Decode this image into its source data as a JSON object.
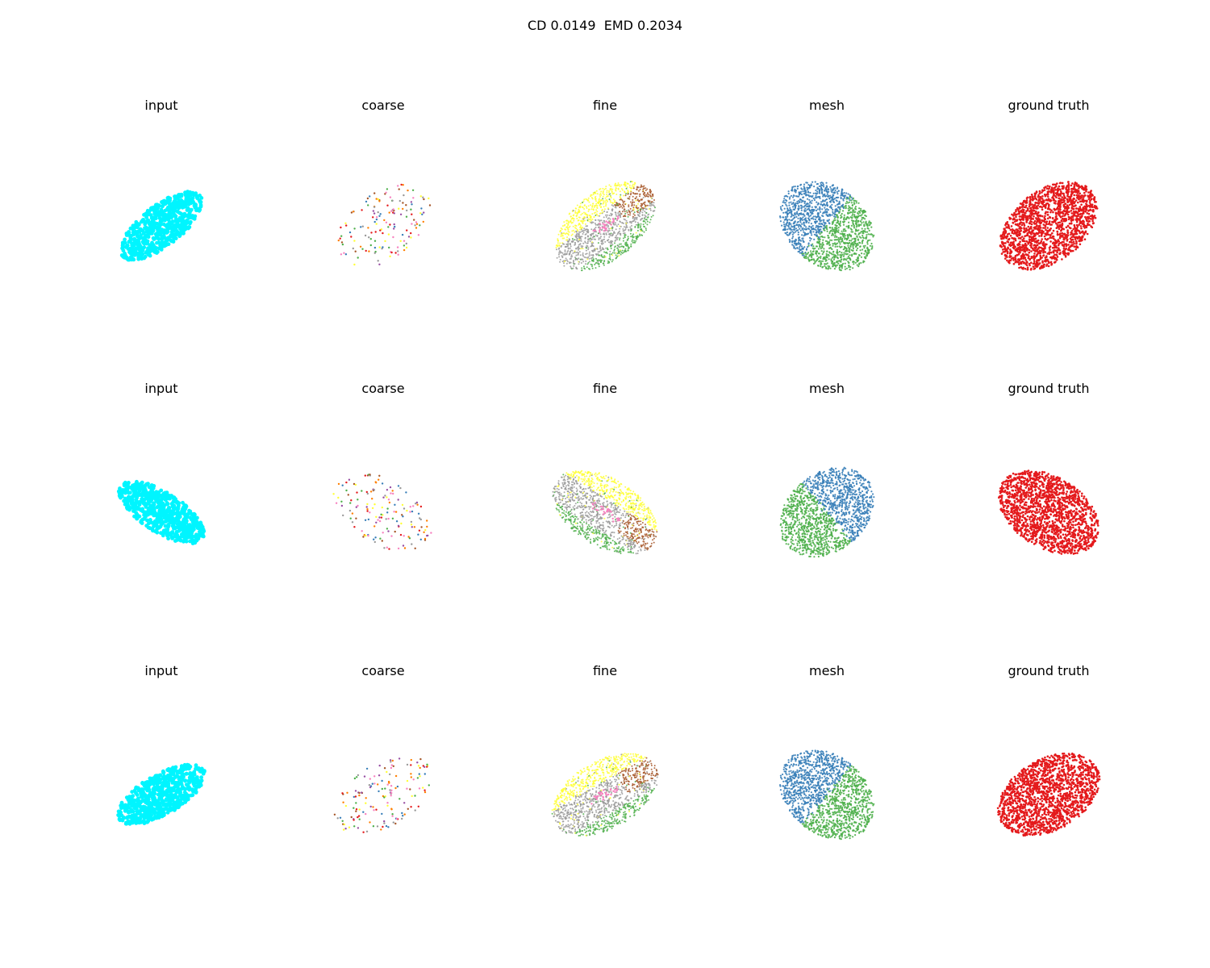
{
  "figure": {
    "title": "CD 0.0149  EMD 0.2034",
    "column_titles": [
      "input",
      "coarse",
      "fine",
      "mesh",
      "ground truth"
    ]
  },
  "chart_data": {
    "type": "scatter",
    "title": "CD 0.0149  EMD 0.2034",
    "rows": 3,
    "columns": [
      "input",
      "coarse",
      "fine",
      "mesh",
      "ground truth"
    ],
    "axes_visible": false,
    "grid": false,
    "colors": {
      "input": "#00f5ff",
      "coarse": [
        "#377eb8",
        "#4daf4a",
        "#e41a1c",
        "#984ea3",
        "#ff7f00",
        "#ffff33",
        "#a65628",
        "#f781bf",
        "#999999"
      ],
      "fine": [
        "#ffff33",
        "#999999",
        "#4daf4a",
        "#a65628",
        "#f781bf"
      ],
      "mesh": [
        "#377eb8",
        "#4daf4a"
      ],
      "ground_truth": "#e41a1c"
    }
  }
}
